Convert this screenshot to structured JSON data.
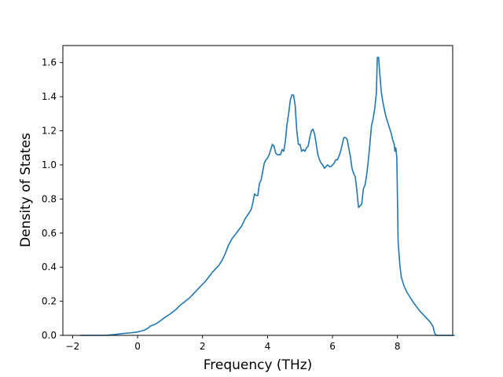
{
  "chart_data": {
    "type": "line",
    "title": "",
    "xlabel": "Frequency (THz)",
    "ylabel": "Density of States",
    "xlim": [
      -2.3,
      9.7
    ],
    "ylim": [
      0.0,
      1.7
    ],
    "grid": false,
    "xticks": [
      -2,
      0,
      2,
      4,
      6,
      8
    ],
    "yticks": [
      0.0,
      0.2,
      0.4,
      0.6,
      0.8,
      1.0,
      1.2,
      1.4,
      1.6
    ],
    "xtick_labels": [
      "−2",
      "0",
      "2",
      "4",
      "6",
      "8"
    ],
    "ytick_labels": [
      "0.0",
      "0.2",
      "0.4",
      "0.6",
      "0.8",
      "1.0",
      "1.2",
      "1.4",
      "1.6"
    ],
    "series": [
      {
        "color": "#1f77b4",
        "points": [
          [
            -1.75,
            0.0
          ],
          [
            -1.5,
            0.0
          ],
          [
            -1.0,
            0.0
          ],
          [
            -0.7,
            0.005
          ],
          [
            -0.5,
            0.01
          ],
          [
            -0.2,
            0.015
          ],
          [
            0.0,
            0.02
          ],
          [
            0.2,
            0.03
          ],
          [
            0.3,
            0.04
          ],
          [
            0.4,
            0.055
          ],
          [
            0.5,
            0.062
          ],
          [
            0.6,
            0.072
          ],
          [
            0.7,
            0.085
          ],
          [
            0.8,
            0.1
          ],
          [
            0.9,
            0.113
          ],
          [
            1.0,
            0.125
          ],
          [
            1.1,
            0.14
          ],
          [
            1.2,
            0.155
          ],
          [
            1.3,
            0.175
          ],
          [
            1.4,
            0.19
          ],
          [
            1.5,
            0.205
          ],
          [
            1.6,
            0.22
          ],
          [
            1.7,
            0.24
          ],
          [
            1.8,
            0.26
          ],
          [
            1.9,
            0.28
          ],
          [
            2.0,
            0.3
          ],
          [
            2.1,
            0.32
          ],
          [
            2.2,
            0.345
          ],
          [
            2.3,
            0.37
          ],
          [
            2.4,
            0.39
          ],
          [
            2.5,
            0.41
          ],
          [
            2.6,
            0.44
          ],
          [
            2.7,
            0.48
          ],
          [
            2.8,
            0.53
          ],
          [
            2.9,
            0.565
          ],
          [
            3.0,
            0.59
          ],
          [
            3.1,
            0.615
          ],
          [
            3.2,
            0.64
          ],
          [
            3.3,
            0.68
          ],
          [
            3.4,
            0.71
          ],
          [
            3.5,
            0.74
          ],
          [
            3.55,
            0.78
          ],
          [
            3.6,
            0.83
          ],
          [
            3.65,
            0.82
          ],
          [
            3.7,
            0.82
          ],
          [
            3.75,
            0.89
          ],
          [
            3.8,
            0.91
          ],
          [
            3.85,
            0.96
          ],
          [
            3.9,
            1.01
          ],
          [
            3.95,
            1.03
          ],
          [
            4.0,
            1.04
          ],
          [
            4.05,
            1.06
          ],
          [
            4.1,
            1.09
          ],
          [
            4.15,
            1.12
          ],
          [
            4.2,
            1.11
          ],
          [
            4.25,
            1.07
          ],
          [
            4.3,
            1.06
          ],
          [
            4.4,
            1.06
          ],
          [
            4.45,
            1.09
          ],
          [
            4.5,
            1.08
          ],
          [
            4.55,
            1.14
          ],
          [
            4.6,
            1.24
          ],
          [
            4.65,
            1.3
          ],
          [
            4.7,
            1.38
          ],
          [
            4.75,
            1.41
          ],
          [
            4.8,
            1.41
          ],
          [
            4.85,
            1.35
          ],
          [
            4.9,
            1.2
          ],
          [
            4.95,
            1.12
          ],
          [
            5.0,
            1.12
          ],
          [
            5.05,
            1.08
          ],
          [
            5.1,
            1.09
          ],
          [
            5.15,
            1.08
          ],
          [
            5.2,
            1.1
          ],
          [
            5.25,
            1.11
          ],
          [
            5.3,
            1.16
          ],
          [
            5.35,
            1.2
          ],
          [
            5.4,
            1.21
          ],
          [
            5.45,
            1.18
          ],
          [
            5.5,
            1.12
          ],
          [
            5.55,
            1.06
          ],
          [
            5.6,
            1.03
          ],
          [
            5.65,
            1.01
          ],
          [
            5.7,
            1.0
          ],
          [
            5.75,
            0.98
          ],
          [
            5.8,
            0.99
          ],
          [
            5.85,
            1.0
          ],
          [
            5.9,
            0.99
          ],
          [
            5.95,
            0.99
          ],
          [
            6.0,
            1.0
          ],
          [
            6.05,
            1.01
          ],
          [
            6.1,
            1.03
          ],
          [
            6.15,
            1.03
          ],
          [
            6.2,
            1.05
          ],
          [
            6.25,
            1.08
          ],
          [
            6.3,
            1.12
          ],
          [
            6.35,
            1.16
          ],
          [
            6.4,
            1.16
          ],
          [
            6.45,
            1.15
          ],
          [
            6.5,
            1.1
          ],
          [
            6.55,
            1.05
          ],
          [
            6.6,
            0.98
          ],
          [
            6.65,
            0.95
          ],
          [
            6.7,
            0.93
          ],
          [
            6.75,
            0.85
          ],
          [
            6.8,
            0.75
          ],
          [
            6.85,
            0.76
          ],
          [
            6.9,
            0.77
          ],
          [
            6.95,
            0.86
          ],
          [
            7.0,
            0.88
          ],
          [
            7.05,
            0.94
          ],
          [
            7.1,
            1.02
          ],
          [
            7.15,
            1.12
          ],
          [
            7.2,
            1.23
          ],
          [
            7.25,
            1.27
          ],
          [
            7.3,
            1.33
          ],
          [
            7.35,
            1.42
          ],
          [
            7.38,
            1.63
          ],
          [
            7.42,
            1.63
          ],
          [
            7.45,
            1.55
          ],
          [
            7.5,
            1.43
          ],
          [
            7.55,
            1.37
          ],
          [
            7.6,
            1.32
          ],
          [
            7.65,
            1.28
          ],
          [
            7.7,
            1.25
          ],
          [
            7.75,
            1.22
          ],
          [
            7.8,
            1.19
          ],
          [
            7.85,
            1.15
          ],
          [
            7.9,
            1.12
          ],
          [
            7.92,
            1.08
          ],
          [
            7.95,
            1.1
          ],
          [
            7.98,
            1.04
          ],
          [
            8.0,
            0.8
          ],
          [
            8.02,
            0.55
          ],
          [
            8.05,
            0.47
          ],
          [
            8.08,
            0.4
          ],
          [
            8.12,
            0.34
          ],
          [
            8.2,
            0.29
          ],
          [
            8.3,
            0.25
          ],
          [
            8.4,
            0.22
          ],
          [
            8.5,
            0.19
          ],
          [
            8.6,
            0.165
          ],
          [
            8.7,
            0.14
          ],
          [
            8.8,
            0.12
          ],
          [
            8.9,
            0.1
          ],
          [
            9.0,
            0.08
          ],
          [
            9.05,
            0.065
          ],
          [
            9.1,
            0.05
          ],
          [
            9.12,
            0.03
          ],
          [
            9.15,
            0.01
          ],
          [
            9.2,
            0.0
          ],
          [
            9.5,
            0.0
          ],
          [
            9.75,
            0.0
          ]
        ]
      }
    ]
  }
}
